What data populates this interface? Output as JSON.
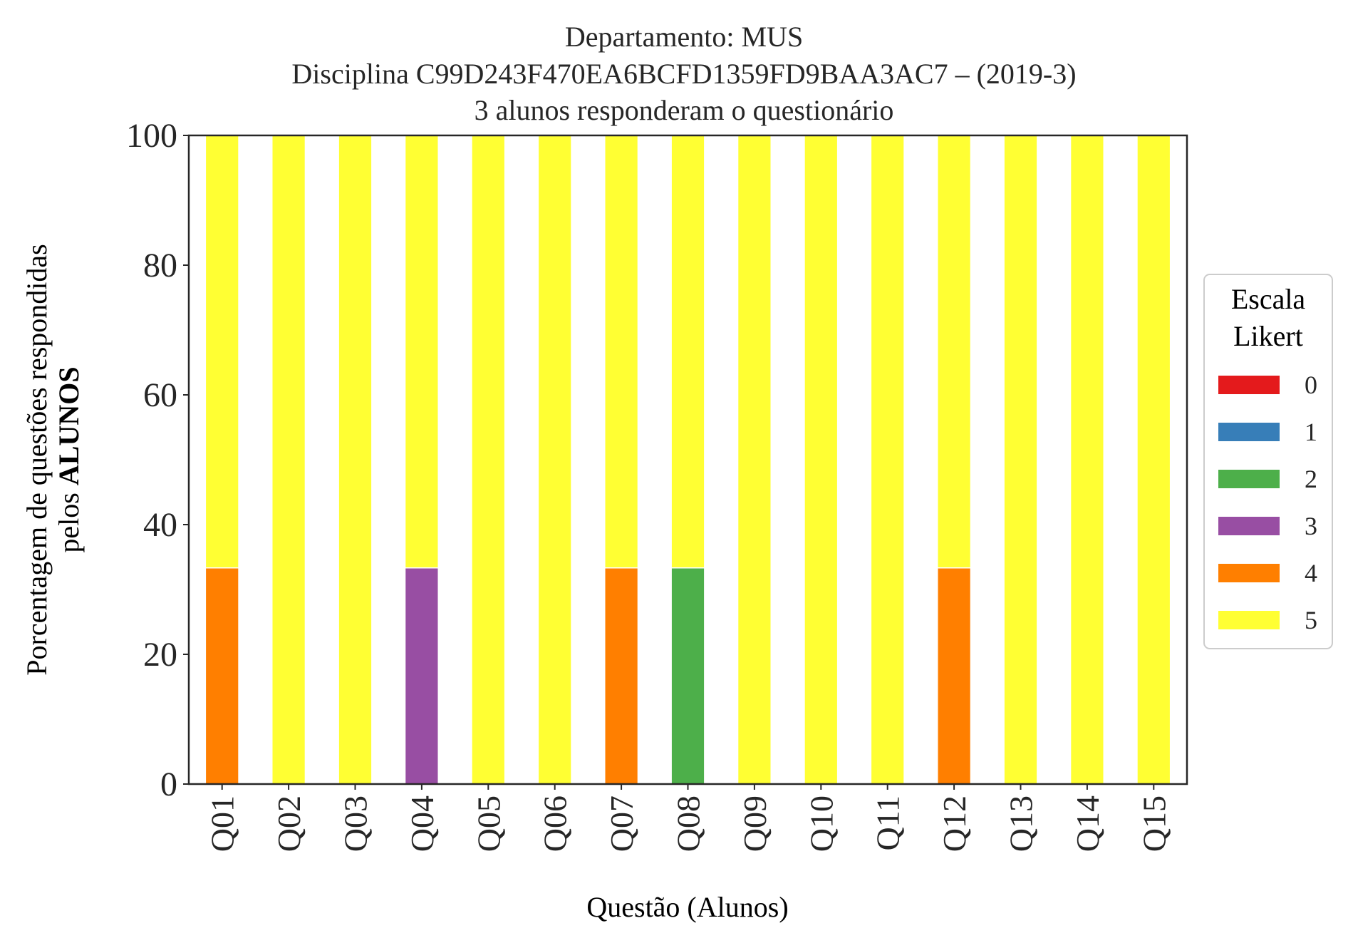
{
  "chart_data": {
    "type": "bar",
    "stacked": true,
    "title_lines": [
      "Departamento: MUS",
      "Disciplina C99D243F470EA6BCFD1359FD9BAA3AC7 – (2019-3)",
      "3 alunos responderam o questionário"
    ],
    "xlabel": "Questão (Alunos)",
    "ylabel_line1": "Porcentagem de questões respondidas",
    "ylabel_line2_prefix": "pelos ",
    "ylabel_line2_bold": "ALUNOS",
    "ylim": [
      0,
      100
    ],
    "yticks": [
      "0",
      "20",
      "40",
      "60",
      "80",
      "100"
    ],
    "grid": false,
    "categories": [
      "Q01",
      "Q02",
      "Q03",
      "Q04",
      "Q05",
      "Q06",
      "Q07",
      "Q08",
      "Q09",
      "Q10",
      "Q11",
      "Q12",
      "Q13",
      "Q14",
      "Q15"
    ],
    "legend": {
      "title_lines": [
        "Escala",
        "Likert"
      ],
      "placement": "center-right outside"
    },
    "series": [
      {
        "name": "0",
        "color": "#e41a1c",
        "values": [
          0,
          0,
          0,
          0,
          0,
          0,
          0,
          0,
          0,
          0,
          0,
          0,
          0,
          0,
          0
        ]
      },
      {
        "name": "1",
        "color": "#377eb8",
        "values": [
          0,
          0,
          0,
          0,
          0,
          0,
          0,
          0,
          0,
          0,
          0,
          0,
          0,
          0,
          0
        ]
      },
      {
        "name": "2",
        "color": "#4daf4a",
        "values": [
          0,
          0,
          0,
          0,
          0,
          0,
          0,
          33.33,
          0,
          0,
          0,
          0,
          0,
          0,
          0
        ]
      },
      {
        "name": "3",
        "color": "#984ea3",
        "values": [
          0,
          0,
          0,
          33.33,
          0,
          0,
          0,
          0,
          0,
          0,
          0,
          0,
          0,
          0,
          0
        ]
      },
      {
        "name": "4",
        "color": "#ff7f00",
        "values": [
          33.33,
          0,
          0,
          0,
          0,
          0,
          33.33,
          0,
          0,
          0,
          0,
          33.33,
          0,
          0,
          0
        ]
      },
      {
        "name": "5",
        "color": "#ffff33",
        "values": [
          66.67,
          100,
          100,
          66.67,
          100,
          100,
          66.67,
          66.67,
          100,
          100,
          100,
          66.67,
          100,
          100,
          100
        ]
      }
    ]
  }
}
